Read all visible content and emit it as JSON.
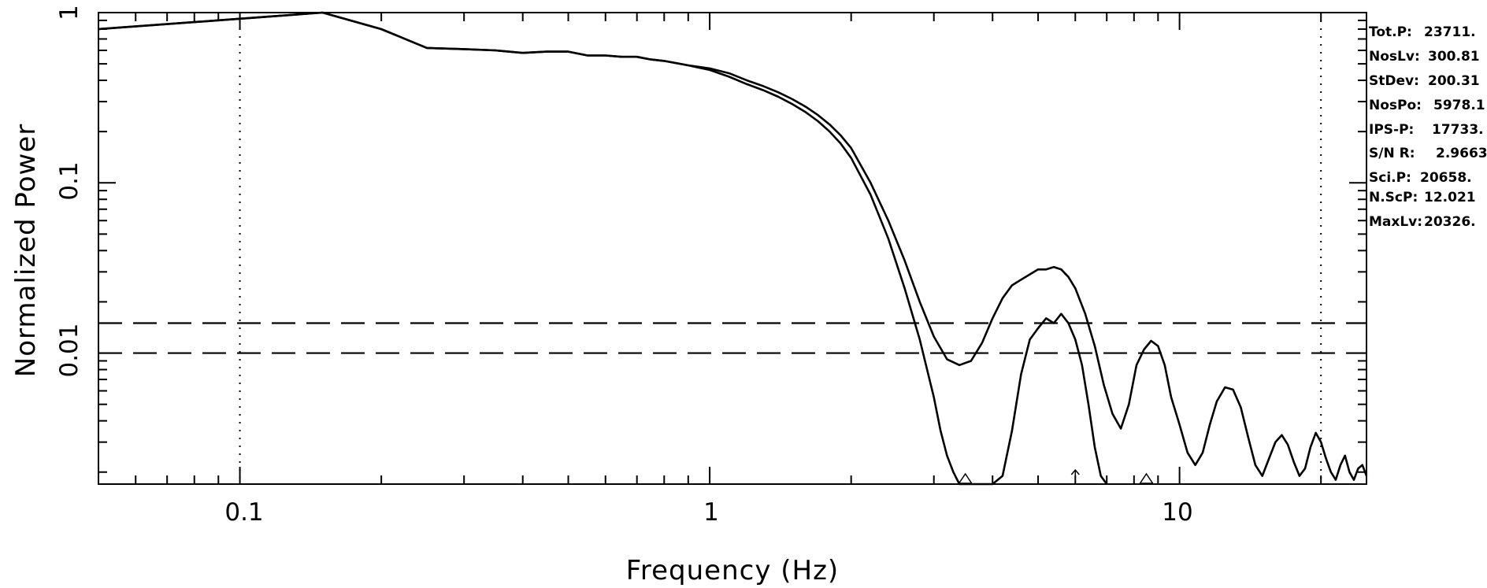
{
  "chart_data": {
    "type": "line",
    "xlabel": "Frequency (Hz)",
    "ylabel": "Normalized Power",
    "x_scale": "log",
    "y_scale": "log",
    "xlim": [
      0.05,
      25
    ],
    "ylim": [
      0.0017,
      1
    ],
    "x_tick_labels": [
      {
        "value": 0.1,
        "label": "0.1"
      },
      {
        "value": 1,
        "label": "1"
      },
      {
        "value": 10,
        "label": "10"
      }
    ],
    "y_tick_labels": [
      {
        "value": 1,
        "label": "1"
      },
      {
        "value": 0.1,
        "label": "0.1"
      },
      {
        "value": 0.01,
        "label": "0.01"
      }
    ],
    "reference_lines": {
      "horizontal_dashed": [
        0.015,
        0.01
      ],
      "vertical_dotted": [
        0.1,
        20
      ]
    },
    "markers": [
      {
        "type": "triangle",
        "x": 3.5
      },
      {
        "type": "arrow",
        "x": 6.0
      },
      {
        "type": "triangle",
        "x": 8.5
      }
    ],
    "series": [
      {
        "x": [
          0.05,
          0.1,
          0.15,
          0.2,
          0.25,
          0.3,
          0.35,
          0.4,
          0.45,
          0.5,
          0.55,
          0.6,
          0.65,
          0.7,
          0.75,
          0.8,
          0.9,
          1.0,
          1.1,
          1.2,
          1.3,
          1.4,
          1.5,
          1.6,
          1.7,
          1.8,
          1.9,
          2.0,
          2.2,
          2.4,
          2.6,
          2.8,
          3.0,
          3.2,
          3.4,
          3.6,
          3.8,
          4.0,
          4.2,
          4.4,
          4.6,
          4.8,
          5.0,
          5.2,
          5.4,
          5.6,
          5.8,
          6.0,
          6.3,
          6.6,
          6.9,
          7.2,
          7.5,
          7.8,
          8.1,
          8.4,
          8.7,
          9.0,
          9.3,
          9.6,
          10.0,
          10.4,
          10.8,
          11.2,
          11.6,
          12.0,
          12.5,
          13.0,
          13.5,
          14.0,
          14.5,
          15.0,
          15.5,
          16.0,
          16.5,
          17.0,
          17.5,
          18.0,
          18.5,
          19.0,
          19.5,
          20.0,
          20.5,
          21.0,
          21.5,
          22.0,
          22.5,
          23.0,
          23.5,
          24.0,
          24.5,
          25.0
        ],
        "values": [
          0.8,
          0.92,
          1.0,
          0.8,
          0.62,
          0.61,
          0.6,
          0.58,
          0.59,
          0.59,
          0.56,
          0.56,
          0.55,
          0.55,
          0.53,
          0.52,
          0.49,
          0.47,
          0.44,
          0.4,
          0.37,
          0.34,
          0.31,
          0.28,
          0.25,
          0.22,
          0.19,
          0.16,
          0.1,
          0.06,
          0.035,
          0.02,
          0.0125,
          0.0092,
          0.0085,
          0.009,
          0.0115,
          0.016,
          0.021,
          0.025,
          0.027,
          0.029,
          0.031,
          0.031,
          0.032,
          0.031,
          0.028,
          0.024,
          0.017,
          0.011,
          0.0065,
          0.0044,
          0.0036,
          0.005,
          0.0085,
          0.0105,
          0.0118,
          0.011,
          0.0085,
          0.0055,
          0.0038,
          0.0026,
          0.0022,
          0.0026,
          0.0038,
          0.0052,
          0.0063,
          0.0061,
          0.0048,
          0.0032,
          0.0022,
          0.0019,
          0.0024,
          0.003,
          0.0033,
          0.0029,
          0.0023,
          0.0019,
          0.0021,
          0.0028,
          0.0034,
          0.003,
          0.0024,
          0.002,
          0.0018,
          0.0022,
          0.0025,
          0.002,
          0.0018,
          0.0021,
          0.0022,
          0.0019
        ]
      },
      {
        "x": [
          0.05,
          0.1,
          0.15,
          0.2,
          0.25,
          0.3,
          0.35,
          0.4,
          0.45,
          0.5,
          0.55,
          0.6,
          0.65,
          0.7,
          0.75,
          0.8,
          0.9,
          1.0,
          1.1,
          1.2,
          1.3,
          1.4,
          1.5,
          1.6,
          1.7,
          1.8,
          1.9,
          2.0,
          2.2,
          2.4,
          2.6,
          2.8,
          3.0,
          3.1,
          3.2,
          3.3,
          3.4,
          3.5,
          3.6,
          3.8,
          4.0,
          4.2,
          4.4,
          4.6,
          4.8,
          5.0,
          5.2,
          5.4,
          5.6,
          5.8,
          6.0,
          6.2,
          6.4,
          6.6,
          6.8,
          7.0
        ],
        "values": [
          0.8,
          0.92,
          1.0,
          0.8,
          0.62,
          0.61,
          0.6,
          0.58,
          0.59,
          0.59,
          0.56,
          0.56,
          0.55,
          0.55,
          0.53,
          0.52,
          0.49,
          0.46,
          0.42,
          0.38,
          0.35,
          0.32,
          0.29,
          0.26,
          0.23,
          0.2,
          0.17,
          0.14,
          0.085,
          0.047,
          0.024,
          0.012,
          0.0055,
          0.0035,
          0.0025,
          0.002,
          0.0017,
          0.0017,
          0.0017,
          0.0017,
          0.0017,
          0.0019,
          0.0035,
          0.0075,
          0.012,
          0.014,
          0.016,
          0.015,
          0.017,
          0.015,
          0.012,
          0.0085,
          0.005,
          0.0028,
          0.0019,
          0.0017
        ]
      }
    ]
  },
  "stats": [
    {
      "label": "Tot.P:",
      "value": "23711."
    },
    {
      "label": "NosLv:",
      "value": "300.81"
    },
    {
      "label": "StDev:",
      "value": "200.31"
    },
    {
      "label": "NosPo:",
      "value": "5978.1"
    },
    {
      "label": "IPS-P:",
      "value": "17733."
    },
    {
      "label": "S/N R:",
      "value": "2.9663"
    },
    {
      "label": "Sci.P:",
      "value": "20658."
    },
    {
      "label": "N.ScP:",
      "value": "12.021"
    },
    {
      "label": "MaxLv:",
      "value": "20326."
    }
  ]
}
